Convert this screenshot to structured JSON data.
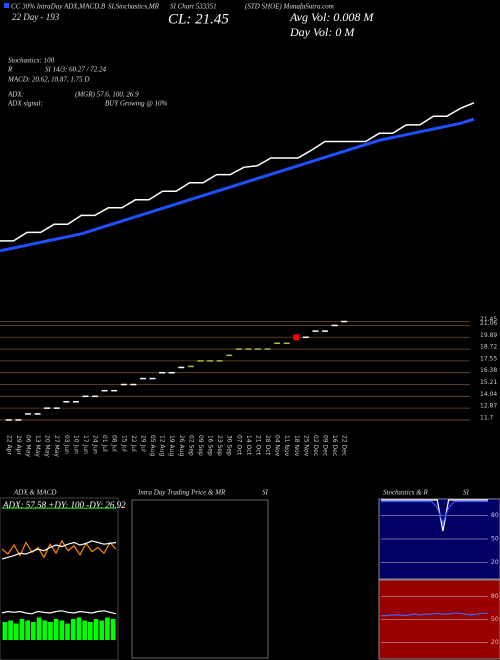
{
  "chart_data": [
    {
      "type": "line",
      "annotations": [
        "CC 30% IntraDay ADX,MACD,B",
        "22 Day - 193",
        "SI,Stochastics,MR",
        "SI Chart 533351",
        "(STD SHOE) MunafaSutra.com",
        "CL: 21.45",
        "Avg Vol: 0.008  M",
        "Day Vol: 0   M",
        "Stochastics: 100",
        "R",
        "SI 14/3: 60.27 / 72.24",
        "MACD: 20.62, 18.87, 1.75 D",
        "ADX:",
        "(MGR) 57.6, 100, 26.9",
        "ADX signal:",
        "BUY Growing @ 10%"
      ],
      "ylim": [
        10,
        22
      ],
      "series": [
        {
          "color": "#ffffff",
          "values": [
            11.7,
            11.7,
            12.3,
            12.3,
            12.87,
            12.87,
            13.5,
            13.5,
            14.04,
            14.04,
            14.6,
            14.6,
            15.21,
            15.21,
            15.8,
            15.8,
            16.38,
            16.38,
            16.9,
            17.0,
            17.55,
            17.55,
            17.55,
            18.1,
            18.72,
            18.72,
            18.72,
            18.72,
            19.3,
            19.3,
            19.89,
            19.89,
            20.5,
            20.5,
            21.06,
            21.45
          ]
        },
        {
          "color": "#1f4fff",
          "values": [
            11.0,
            11.2,
            11.4,
            11.6,
            11.8,
            12.0,
            12.2,
            12.5,
            12.8,
            13.1,
            13.4,
            13.7,
            14.0,
            14.3,
            14.6,
            14.9,
            15.2,
            15.5,
            15.8,
            16.1,
            16.4,
            16.7,
            17.0,
            17.3,
            17.6,
            17.9,
            18.2,
            18.5,
            18.8,
            19.0,
            19.2,
            19.4,
            19.6,
            19.8,
            20.0,
            20.3
          ]
        }
      ]
    },
    {
      "type": "dash",
      "categories": [
        "22 Apr",
        "29 Apr",
        "06 May",
        "13 May",
        "20 May",
        "27 May",
        "03 Jun",
        "10 Jun",
        "17 Jun",
        "24 Jun",
        "01 Jul",
        "08 Jul",
        "15 Jul",
        "22 Jul",
        "29 Jul",
        "05 Aug",
        "12 Aug",
        "19 Aug",
        "26 Aug",
        "02 Sep",
        "09 Sep",
        "16 Sep",
        "23 Sep",
        "30 Sep",
        "07 Oct",
        "14 Oct",
        "21 Oct",
        "28 Oct",
        "04 Nov",
        "11 Nov",
        "18 Nov",
        "25 Nov",
        "02 Dec",
        "09 Dec",
        "16 Dec",
        "22 Dec"
      ],
      "values": [
        11.7,
        11.7,
        12.3,
        12.3,
        12.87,
        12.87,
        13.5,
        13.5,
        14.04,
        14.04,
        14.6,
        14.6,
        15.21,
        15.21,
        15.8,
        15.8,
        16.38,
        16.38,
        16.9,
        17.0,
        17.55,
        17.55,
        17.55,
        18.1,
        18.72,
        18.72,
        18.72,
        18.72,
        19.3,
        19.3,
        19.89,
        19.89,
        20.5,
        20.5,
        21.06,
        21.45
      ],
      "colors": [
        "#ffffff",
        "#ffffff",
        "#ffffff",
        "#ffffff",
        "#ffffff",
        "#ffffff",
        "#ffffff",
        "#ffffff",
        "#ffffff",
        "#ffffff",
        "#ffffff",
        "#ffffff",
        "#ffffff",
        "#ffffff",
        "#ffffff",
        "#ffffff",
        "#ffffff",
        "#ffffff",
        "#ffffff",
        "#b5b54a",
        "#b5b54a",
        "#b5b54a",
        "#b5b54a",
        "#b5b54a",
        "#b5b54a",
        "#b5b54a",
        "#b5b54a",
        "#b5b54a",
        "#b5b54a",
        "#b5b54a",
        "#ff0000",
        "#ffffff",
        "#ffffff",
        "#ffffff",
        "#ffffff",
        "#ffffff"
      ],
      "ylim": [
        11.2,
        21.8
      ],
      "yticks": [
        21.45,
        21.06,
        19.89,
        18.72,
        17.55,
        16.38,
        15.21,
        14.04,
        12.87,
        11.7
      ],
      "grid": true,
      "grid_color": "#7a4a2a"
    },
    {
      "type": "line",
      "title": "ADX & MACD",
      "subtitle": "ADX: 57.58 +DY: 100 -DY: 26.92",
      "ylim": [
        0,
        110
      ],
      "background": "#000000",
      "series": [
        {
          "color": "#00dd00",
          "values": [
            100,
            100,
            100,
            100,
            100,
            100,
            100,
            100,
            100,
            100,
            100,
            100,
            100,
            100,
            100,
            100,
            100,
            100,
            100,
            100
          ]
        },
        {
          "color": "#ff8800",
          "values": [
            50,
            44,
            55,
            42,
            58,
            46,
            52,
            40,
            56,
            45,
            60,
            48,
            54,
            43,
            57,
            47,
            52,
            45,
            58,
            50
          ]
        },
        {
          "color": "#ffffff",
          "values": [
            38,
            40,
            42,
            45,
            44,
            47,
            50,
            48,
            52,
            55,
            53,
            56,
            58,
            55,
            57,
            60,
            58,
            56,
            57,
            58
          ]
        }
      ]
    },
    {
      "type": "macd",
      "ylim": [
        -1,
        3
      ],
      "bars": {
        "color": "#00ff00",
        "values": [
          1.2,
          1.3,
          1.1,
          1.4,
          1.3,
          1.2,
          1.5,
          1.3,
          1.2,
          1.4,
          1.3,
          1.1,
          1.4,
          1.5,
          1.3,
          1.2,
          1.4,
          1.3,
          1.5,
          1.4
        ]
      },
      "series": [
        {
          "color": "#ffffff",
          "values": [
            1.8,
            1.9,
            1.85,
            1.9,
            1.8,
            1.75,
            1.9,
            1.85,
            1.8,
            1.9,
            1.95,
            1.85,
            1.8,
            1.9,
            1.85,
            1.8,
            1.9,
            1.95,
            1.85,
            1.75
          ]
        }
      ]
    },
    {
      "type": "empty",
      "title": "Intra Day Trading Price & MR",
      "subtitle": "SI",
      "background": "#000000"
    },
    {
      "type": "line",
      "title": "Stochastics & R",
      "subtitle": "SI",
      "background": "#000066",
      "ylim": [
        0,
        100
      ],
      "yticks": [
        20,
        50,
        80
      ],
      "series": [
        {
          "color": "#ffffff",
          "values": [
            100,
            100,
            100,
            100,
            100,
            100,
            100,
            100,
            100,
            100,
            100,
            60,
            100,
            100,
            100,
            100,
            100,
            100,
            100,
            100
          ]
        },
        {
          "color": "#3355ff",
          "values": [
            98,
            98,
            98,
            98,
            98,
            98,
            98,
            98,
            98,
            98,
            90,
            70,
            90,
            98,
            98,
            98,
            98,
            98,
            98,
            98
          ]
        }
      ]
    },
    {
      "type": "line",
      "background": "#990000",
      "ylim": [
        0,
        100
      ],
      "yticks": [
        20,
        50,
        80
      ],
      "series": [
        {
          "color": "#3366ff",
          "values": [
            55,
            55,
            56,
            56,
            55,
            56,
            57,
            56,
            57,
            57,
            58,
            57,
            57,
            58,
            58,
            57,
            56,
            57,
            58,
            58
          ]
        }
      ]
    }
  ]
}
